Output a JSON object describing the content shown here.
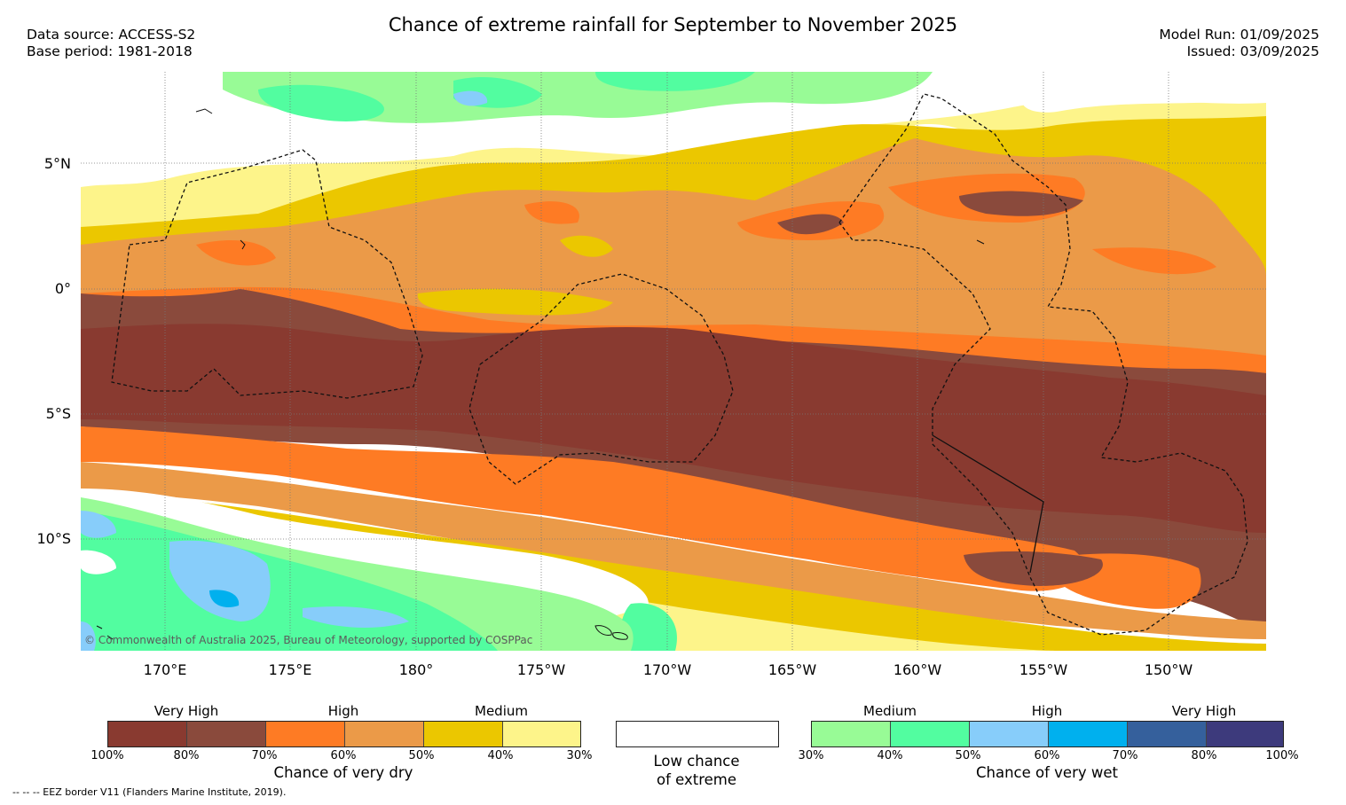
{
  "title": "Chance of extreme rainfall for September to November 2025",
  "meta_left": {
    "data_source": "Data source: ACCESS-S2",
    "base_period": "Base period: 1981-2018"
  },
  "meta_right": {
    "model_run": "Model Run: 01/09/2025",
    "issued": "Issued: 03/09/2025"
  },
  "map": {
    "lat_labels": [
      "5°N",
      "0°",
      "5°S",
      "10°S"
    ],
    "lon_labels": [
      "170°E",
      "175°E",
      "180°",
      "175°W",
      "170°W",
      "165°W",
      "160°W",
      "155°W",
      "150°W"
    ],
    "copyright": "© Commonwealth of Australia 2025, Bureau of Meteorology, supported by COSPPac",
    "colors": {
      "dry_100_80": "#893a30",
      "dry_80_70": "#8a4a3c",
      "dry_70_60": "#fe7b24",
      "dry_60_50": "#eb9a48",
      "dry_50_40": "#ebc700",
      "dry_40_30": "#fdf48a",
      "wet_30_40": "#98fb96",
      "wet_40_50": "#52fda0",
      "wet_50_60": "#87cdfa",
      "wet_60_70": "#00b0ee",
      "wet_70_80": "#35609c",
      "wet_80_100": "#3d3a7c"
    }
  },
  "legend_dry": {
    "categories": [
      "Very High",
      "High",
      "Medium"
    ],
    "ticks": [
      "100%",
      "80%",
      "70%",
      "60%",
      "50%",
      "40%",
      "30%"
    ],
    "caption": "Chance of very dry",
    "colors": [
      "#893a30",
      "#8a4a3c",
      "#fe7b24",
      "#eb9a48",
      "#ebc700",
      "#fdf48a"
    ]
  },
  "legend_neutral": {
    "line1": "Low chance",
    "line2": "of extreme"
  },
  "legend_wet": {
    "categories": [
      "Medium",
      "High",
      "Very High"
    ],
    "ticks": [
      "30%",
      "40%",
      "50%",
      "60%",
      "70%",
      "80%",
      "100%"
    ],
    "caption": "Chance of very wet",
    "colors": [
      "#98fb96",
      "#52fda0",
      "#87cdfa",
      "#00b0ee",
      "#35609c",
      "#3d3a7c"
    ]
  },
  "footnote": "--  --  -- EEZ border V11 (Flanders Marine Institute, 2019)."
}
